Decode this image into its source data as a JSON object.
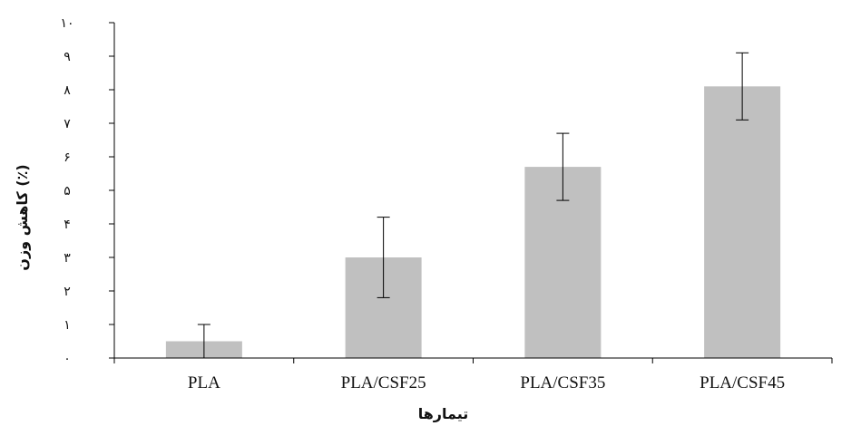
{
  "chart_data": {
    "type": "bar",
    "categories": [
      "PLA",
      "PLA/CSF25",
      "PLA/CSF35",
      "PLA/CSF45"
    ],
    "values": [
      0.5,
      3.0,
      5.7,
      8.1
    ],
    "error": [
      0.5,
      1.2,
      1.0,
      1.0
    ],
    "ylim": [
      0,
      10
    ],
    "yticks": [
      0,
      1,
      2,
      3,
      4,
      5,
      6,
      7,
      8,
      9,
      10
    ],
    "ytick_labels": [
      "۰",
      "۱",
      "۲",
      "۳",
      "۴",
      "۵",
      "۶",
      "۷",
      "۸",
      "۹",
      "۱۰"
    ],
    "xlabel": "تیمارها",
    "ylabel": "کاهش وزن (٪)",
    "grid": false,
    "bar_color": "#c0c0c0",
    "axis_color": "#000000"
  }
}
